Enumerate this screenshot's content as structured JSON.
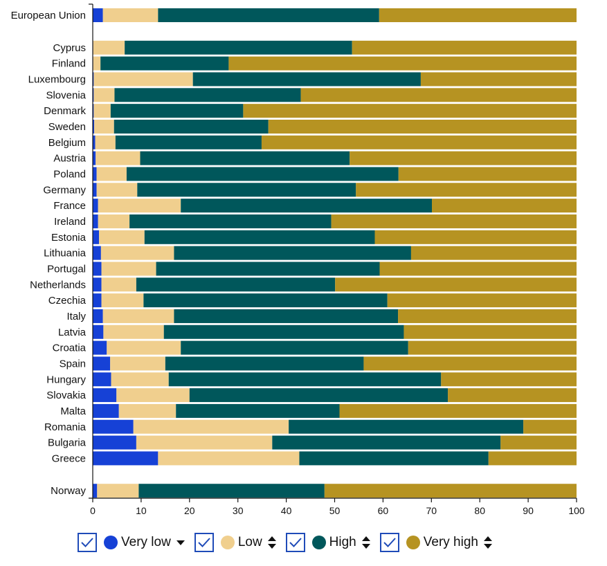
{
  "chart_data": {
    "type": "bar",
    "orientation": "horizontal",
    "stacked": true,
    "xlim": [
      0,
      100
    ],
    "xticks": [
      "0",
      "10",
      "20",
      "30",
      "40",
      "50",
      "60",
      "70",
      "80",
      "90",
      "100"
    ],
    "categories": [
      "European Union",
      "Cyprus",
      "Finland",
      "Luxembourg",
      "Slovenia",
      "Denmark",
      "Sweden",
      "Belgium",
      "Austria",
      "Poland",
      "Germany",
      "France",
      "Ireland",
      "Estonia",
      "Lithuania",
      "Portugal",
      "Netherlands",
      "Czechia",
      "Italy",
      "Latvia",
      "Croatia",
      "Spain",
      "Hungary",
      "Slovakia",
      "Malta",
      "Romania",
      "Bulgaria",
      "Greece",
      "Norway"
    ],
    "series": [
      {
        "name": "Very low",
        "color": "#1641d6",
        "values": [
          2.1,
          0.1,
          0.1,
          0.2,
          0.2,
          0.2,
          0.3,
          0.5,
          0.6,
          0.8,
          0.8,
          1.1,
          1.1,
          1.3,
          1.7,
          1.8,
          1.8,
          1.8,
          2.1,
          2.2,
          2.9,
          3.6,
          3.8,
          4.9,
          5.4,
          8.4,
          9.0,
          13.5,
          0.9
        ]
      },
      {
        "name": "Low",
        "color": "#f0cf8e",
        "values": [
          11.4,
          6.5,
          1.5,
          20.5,
          4.3,
          3.5,
          4.1,
          4.2,
          9.2,
          6.2,
          8.4,
          17.1,
          6.5,
          9.4,
          15.1,
          11.3,
          7.2,
          8.7,
          14.7,
          12.5,
          15.3,
          11.4,
          11.9,
          15.1,
          11.8,
          32.1,
          28.1,
          29.2,
          8.6
        ]
      },
      {
        "name": "High",
        "color": "#00575b",
        "values": [
          45.7,
          47.0,
          26.5,
          47.1,
          38.5,
          27.4,
          31.9,
          30.2,
          43.3,
          56.2,
          45.2,
          51.9,
          41.7,
          47.6,
          49.0,
          46.2,
          41.1,
          50.4,
          46.3,
          49.6,
          47.0,
          41.0,
          56.3,
          53.4,
          33.8,
          48.5,
          47.2,
          39.1,
          38.4
        ]
      },
      {
        "name": "Very high",
        "color": "#b69322",
        "values": [
          40.8,
          46.4,
          71.9,
          32.2,
          57.0,
          68.9,
          63.7,
          65.1,
          46.9,
          36.8,
          45.6,
          29.9,
          50.7,
          41.7,
          34.2,
          40.7,
          49.9,
          39.1,
          36.9,
          35.7,
          34.8,
          44.0,
          28.0,
          26.6,
          49.0,
          11.0,
          15.7,
          18.2,
          52.1
        ]
      }
    ]
  },
  "legend": {
    "items": [
      {
        "label": "Very low",
        "color": "#1641d6",
        "checked": true,
        "sort_icon": "sort-down-icon"
      },
      {
        "label": "Low",
        "color": "#f0cf8e",
        "checked": true,
        "sort_icon": "sort-both-icon"
      },
      {
        "label": "High",
        "color": "#00575b",
        "checked": true,
        "sort_icon": "sort-both-icon"
      },
      {
        "label": "Very high",
        "color": "#b69322",
        "checked": true,
        "sort_icon": "sort-both-icon"
      }
    ]
  }
}
